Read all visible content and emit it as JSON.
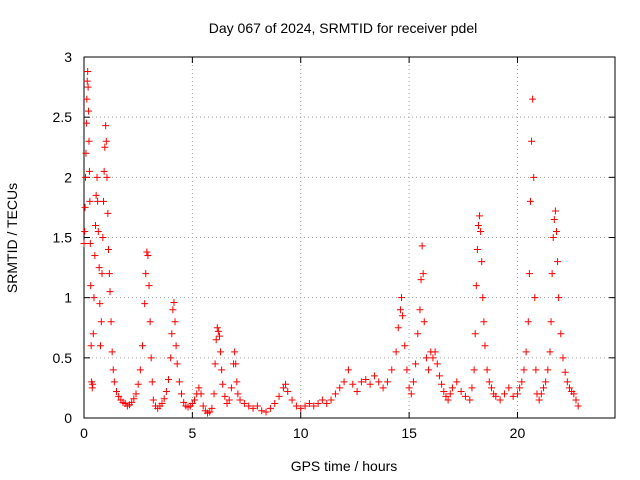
{
  "chart_data": {
    "type": "scatter",
    "title": "Day 067 of 2024, SRMTID for receiver pdel",
    "xlabel": "GPS time / hours",
    "ylabel": "SRMTID / TECUs",
    "xlim": [
      0,
      24.5
    ],
    "ylim": [
      0,
      3
    ],
    "xticks": [
      0,
      5,
      10,
      15,
      20
    ],
    "xtick_labels": [
      "0",
      "5",
      "10",
      "15",
      "20"
    ],
    "yticks": [
      0,
      0.5,
      1,
      1.5,
      2,
      2.5,
      3
    ],
    "ytick_labels": [
      "0",
      "0.5",
      "1",
      "1.5",
      "2",
      "2.5",
      "3"
    ],
    "grid": true,
    "marker": "+",
    "color": "#ff0000",
    "series": [
      {
        "name": "SRMTID",
        "points": [
          [
            0.0,
            1.45
          ],
          [
            0.03,
            1.55
          ],
          [
            0.05,
            1.75
          ],
          [
            0.07,
            2.0
          ],
          [
            0.09,
            2.2
          ],
          [
            0.11,
            2.45
          ],
          [
            0.13,
            2.65
          ],
          [
            0.15,
            2.8
          ],
          [
            0.17,
            2.88
          ],
          [
            0.19,
            2.75
          ],
          [
            0.21,
            2.55
          ],
          [
            0.23,
            2.3
          ],
          [
            0.25,
            2.05
          ],
          [
            0.27,
            1.8
          ],
          [
            0.29,
            1.45
          ],
          [
            0.31,
            1.1
          ],
          [
            0.33,
            0.6
          ],
          [
            0.35,
            0.3
          ],
          [
            0.38,
            0.25
          ],
          [
            0.4,
            0.28
          ],
          [
            0.43,
            0.7
          ],
          [
            0.46,
            1.0
          ],
          [
            0.5,
            1.35
          ],
          [
            0.53,
            1.6
          ],
          [
            0.56,
            1.85
          ],
          [
            0.6,
            2.0
          ],
          [
            0.63,
            1.8
          ],
          [
            0.66,
            1.55
          ],
          [
            0.7,
            1.25
          ],
          [
            0.73,
            0.95
          ],
          [
            0.76,
            0.6
          ],
          [
            0.8,
            0.8
          ],
          [
            0.83,
            1.2
          ],
          [
            0.87,
            1.5
          ],
          [
            0.9,
            1.8
          ],
          [
            0.93,
            2.05
          ],
          [
            0.96,
            2.25
          ],
          [
            1.0,
            2.43
          ],
          [
            1.03,
            2.3
          ],
          [
            1.06,
            2.0
          ],
          [
            1.1,
            1.7
          ],
          [
            1.13,
            1.4
          ],
          [
            1.17,
            1.2
          ],
          [
            1.2,
            1.05
          ],
          [
            1.25,
            0.8
          ],
          [
            1.3,
            0.55
          ],
          [
            1.35,
            0.4
          ],
          [
            1.4,
            0.3
          ],
          [
            1.5,
            0.22
          ],
          [
            1.6,
            0.18
          ],
          [
            1.7,
            0.15
          ],
          [
            1.8,
            0.13
          ],
          [
            1.9,
            0.12
          ],
          [
            2.0,
            0.1
          ],
          [
            2.1,
            0.11
          ],
          [
            2.2,
            0.13
          ],
          [
            2.3,
            0.16
          ],
          [
            2.4,
            0.2
          ],
          [
            2.5,
            0.28
          ],
          [
            2.6,
            0.4
          ],
          [
            2.7,
            0.6
          ],
          [
            2.8,
            0.95
          ],
          [
            2.85,
            1.2
          ],
          [
            2.9,
            1.38
          ],
          [
            2.95,
            1.35
          ],
          [
            3.0,
            1.1
          ],
          [
            3.05,
            0.8
          ],
          [
            3.1,
            0.5
          ],
          [
            3.15,
            0.3
          ],
          [
            3.2,
            0.15
          ],
          [
            3.3,
            0.1
          ],
          [
            3.4,
            0.08
          ],
          [
            3.5,
            0.1
          ],
          [
            3.6,
            0.12
          ],
          [
            3.7,
            0.16
          ],
          [
            3.8,
            0.22
          ],
          [
            3.9,
            0.32
          ],
          [
            4.0,
            0.5
          ],
          [
            4.05,
            0.7
          ],
          [
            4.1,
            0.9
          ],
          [
            4.15,
            0.96
          ],
          [
            4.2,
            0.8
          ],
          [
            4.25,
            0.6
          ],
          [
            4.3,
            0.45
          ],
          [
            4.4,
            0.3
          ],
          [
            4.5,
            0.2
          ],
          [
            4.6,
            0.13
          ],
          [
            4.7,
            0.1
          ],
          [
            4.8,
            0.09
          ],
          [
            4.9,
            0.1
          ],
          [
            5.0,
            0.12
          ],
          [
            5.1,
            0.15
          ],
          [
            5.2,
            0.2
          ],
          [
            5.3,
            0.25
          ],
          [
            5.4,
            0.2
          ],
          [
            5.5,
            0.1
          ],
          [
            5.6,
            0.06
          ],
          [
            5.7,
            0.04
          ],
          [
            5.8,
            0.05
          ],
          [
            5.9,
            0.08
          ],
          [
            6.0,
            0.2
          ],
          [
            6.05,
            0.45
          ],
          [
            6.1,
            0.65
          ],
          [
            6.15,
            0.75
          ],
          [
            6.2,
            0.72
          ],
          [
            6.25,
            0.68
          ],
          [
            6.3,
            0.55
          ],
          [
            6.35,
            0.4
          ],
          [
            6.4,
            0.28
          ],
          [
            6.5,
            0.18
          ],
          [
            6.6,
            0.12
          ],
          [
            6.7,
            0.15
          ],
          [
            6.8,
            0.25
          ],
          [
            6.9,
            0.45
          ],
          [
            6.95,
            0.55
          ],
          [
            7.0,
            0.45
          ],
          [
            7.05,
            0.3
          ],
          [
            7.1,
            0.2
          ],
          [
            7.2,
            0.15
          ],
          [
            7.4,
            0.12
          ],
          [
            7.6,
            0.1
          ],
          [
            7.8,
            0.08
          ],
          [
            8.0,
            0.1
          ],
          [
            8.2,
            0.06
          ],
          [
            8.4,
            0.05
          ],
          [
            8.6,
            0.08
          ],
          [
            8.8,
            0.12
          ],
          [
            9.0,
            0.18
          ],
          [
            9.2,
            0.25
          ],
          [
            9.3,
            0.28
          ],
          [
            9.4,
            0.22
          ],
          [
            9.6,
            0.15
          ],
          [
            9.8,
            0.1
          ],
          [
            10.0,
            0.08
          ],
          [
            10.2,
            0.1
          ],
          [
            10.4,
            0.12
          ],
          [
            10.6,
            0.1
          ],
          [
            10.8,
            0.12
          ],
          [
            11.0,
            0.15
          ],
          [
            11.2,
            0.12
          ],
          [
            11.4,
            0.15
          ],
          [
            11.6,
            0.2
          ],
          [
            11.8,
            0.25
          ],
          [
            12.0,
            0.3
          ],
          [
            12.2,
            0.4
          ],
          [
            12.4,
            0.28
          ],
          [
            12.6,
            0.22
          ],
          [
            12.8,
            0.3
          ],
          [
            13.0,
            0.32
          ],
          [
            13.2,
            0.28
          ],
          [
            13.4,
            0.35
          ],
          [
            13.6,
            0.3
          ],
          [
            13.8,
            0.25
          ],
          [
            14.0,
            0.3
          ],
          [
            14.2,
            0.4
          ],
          [
            14.4,
            0.55
          ],
          [
            14.5,
            0.75
          ],
          [
            14.6,
            0.9
          ],
          [
            14.65,
            1.0
          ],
          [
            14.7,
            0.85
          ],
          [
            14.8,
            0.6
          ],
          [
            14.9,
            0.4
          ],
          [
            15.0,
            0.25
          ],
          [
            15.1,
            0.2
          ],
          [
            15.2,
            0.3
          ],
          [
            15.3,
            0.45
          ],
          [
            15.4,
            0.7
          ],
          [
            15.5,
            0.9
          ],
          [
            15.55,
            1.15
          ],
          [
            15.6,
            1.43
          ],
          [
            15.65,
            1.2
          ],
          [
            15.7,
            0.8
          ],
          [
            15.8,
            0.5
          ],
          [
            15.9,
            0.4
          ],
          [
            16.0,
            0.55
          ],
          [
            16.1,
            0.5
          ],
          [
            16.2,
            0.55
          ],
          [
            16.3,
            0.45
          ],
          [
            16.4,
            0.35
          ],
          [
            16.5,
            0.28
          ],
          [
            16.6,
            0.22
          ],
          [
            16.7,
            0.18
          ],
          [
            16.8,
            0.15
          ],
          [
            16.9,
            0.2
          ],
          [
            17.0,
            0.25
          ],
          [
            17.2,
            0.3
          ],
          [
            17.4,
            0.22
          ],
          [
            17.6,
            0.18
          ],
          [
            17.8,
            0.15
          ],
          [
            17.9,
            0.25
          ],
          [
            18.0,
            0.4
          ],
          [
            18.05,
            0.7
          ],
          [
            18.1,
            1.1
          ],
          [
            18.15,
            1.4
          ],
          [
            18.2,
            1.6
          ],
          [
            18.25,
            1.68
          ],
          [
            18.3,
            1.55
          ],
          [
            18.35,
            1.3
          ],
          [
            18.4,
            1.0
          ],
          [
            18.45,
            0.8
          ],
          [
            18.5,
            0.6
          ],
          [
            18.6,
            0.4
          ],
          [
            18.7,
            0.3
          ],
          [
            18.8,
            0.25
          ],
          [
            18.9,
            0.2
          ],
          [
            19.0,
            0.18
          ],
          [
            19.2,
            0.15
          ],
          [
            19.4,
            0.2
          ],
          [
            19.6,
            0.25
          ],
          [
            19.8,
            0.18
          ],
          [
            20.0,
            0.2
          ],
          [
            20.1,
            0.25
          ],
          [
            20.2,
            0.3
          ],
          [
            20.3,
            0.4
          ],
          [
            20.4,
            0.55
          ],
          [
            20.5,
            0.8
          ],
          [
            20.55,
            1.2
          ],
          [
            20.6,
            1.8
          ],
          [
            20.65,
            2.3
          ],
          [
            20.7,
            2.65
          ],
          [
            20.75,
            2.0
          ],
          [
            20.8,
            1.0
          ],
          [
            20.85,
            0.4
          ],
          [
            20.9,
            0.2
          ],
          [
            21.0,
            0.15
          ],
          [
            21.1,
            0.2
          ],
          [
            21.2,
            0.25
          ],
          [
            21.3,
            0.3
          ],
          [
            21.4,
            0.4
          ],
          [
            21.5,
            0.55
          ],
          [
            21.55,
            0.8
          ],
          [
            21.6,
            1.2
          ],
          [
            21.65,
            1.5
          ],
          [
            21.7,
            1.65
          ],
          [
            21.75,
            1.72
          ],
          [
            21.8,
            1.55
          ],
          [
            21.85,
            1.3
          ],
          [
            21.9,
            1.0
          ],
          [
            22.0,
            0.7
          ],
          [
            22.1,
            0.5
          ],
          [
            22.2,
            0.38
          ],
          [
            22.3,
            0.3
          ],
          [
            22.4,
            0.25
          ],
          [
            22.5,
            0.22
          ],
          [
            22.6,
            0.2
          ],
          [
            22.7,
            0.15
          ],
          [
            22.8,
            0.1
          ]
        ]
      }
    ]
  }
}
